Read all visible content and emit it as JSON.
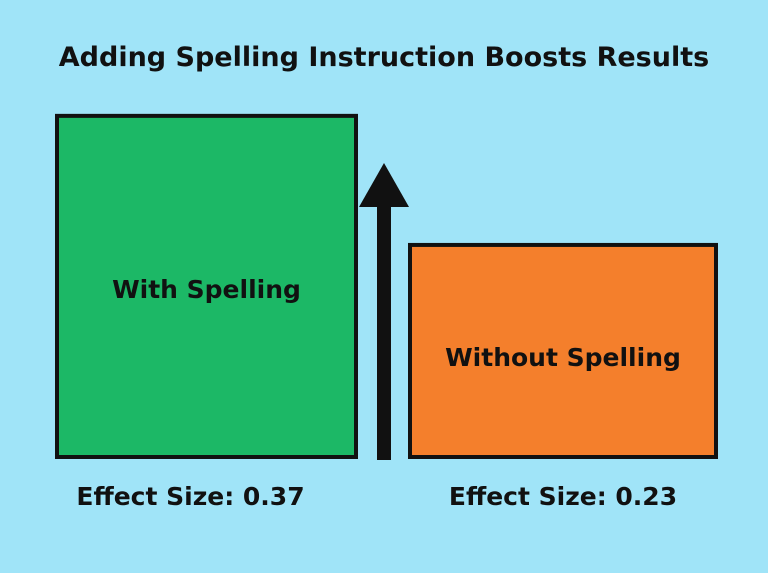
{
  "chart_data": {
    "type": "bar",
    "title": "Adding Spelling Instruction Boosts Results",
    "categories": [
      "With Spelling",
      "Without Spelling"
    ],
    "values": [
      0.37,
      0.23
    ],
    "value_labels": [
      "Effect Size: 0.37",
      "Effect Size: 0.23"
    ],
    "colors": [
      "#1cb866",
      "#f47f2c"
    ],
    "annotation": "up-arrow between bars",
    "grid": false,
    "axes_visible": false
  },
  "colors": {
    "background": "#a0e4f8",
    "outline": "#111111"
  }
}
